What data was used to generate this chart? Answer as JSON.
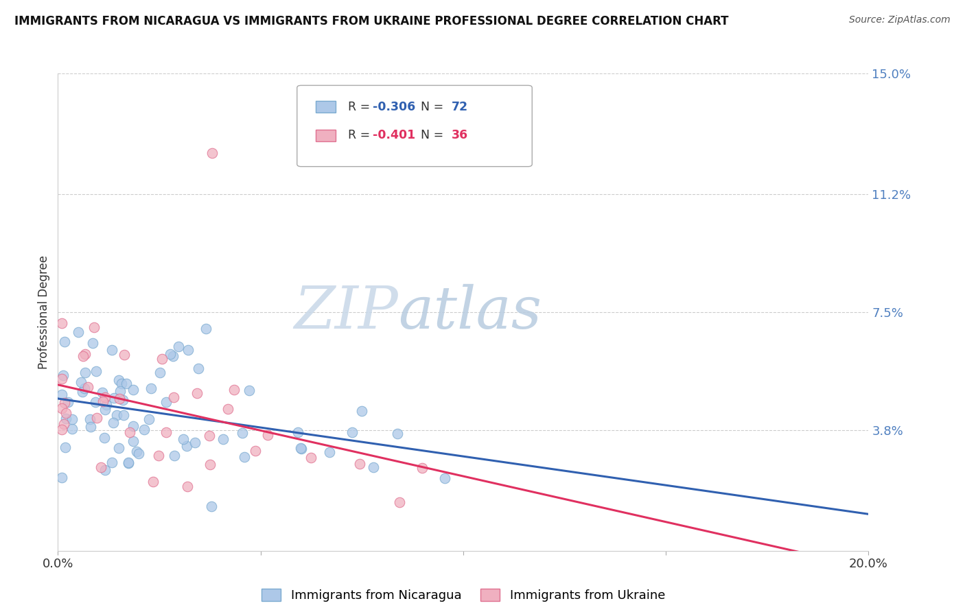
{
  "title": "IMMIGRANTS FROM NICARAGUA VS IMMIGRANTS FROM UKRAINE PROFESSIONAL DEGREE CORRELATION CHART",
  "source": "Source: ZipAtlas.com",
  "ylabel": "Professional Degree",
  "xlim": [
    0.0,
    0.2
  ],
  "ylim": [
    0.0,
    0.15
  ],
  "ytick_vals": [
    0.0,
    0.038,
    0.075,
    0.112,
    0.15
  ],
  "ytick_labels": [
    "",
    "3.8%",
    "7.5%",
    "11.2%",
    "15.0%"
  ],
  "xtick_vals": [
    0.0,
    0.05,
    0.1,
    0.15,
    0.2
  ],
  "xtick_labels": [
    "0.0%",
    "",
    "",
    "",
    "20.0%"
  ],
  "nicaragua_R": -0.306,
  "nicaragua_N": 72,
  "ukraine_R": -0.401,
  "ukraine_N": 36,
  "nicaragua_color": "#adc8e8",
  "ukraine_color": "#f0b0c0",
  "nicaragua_edge_color": "#7aaad0",
  "ukraine_edge_color": "#e07090",
  "nicaragua_line_color": "#3060b0",
  "ukraine_line_color": "#e03060",
  "background_color": "#ffffff",
  "grid_color": "#cccccc",
  "title_color": "#111111",
  "source_color": "#555555",
  "ytick_color": "#5080c0",
  "xtick_color": "#333333",
  "legend_border_color": "#aaaaaa",
  "legend_text_color": "#333333",
  "legend_R_color": "#3060b0",
  "legend_R_color2": "#e03060"
}
